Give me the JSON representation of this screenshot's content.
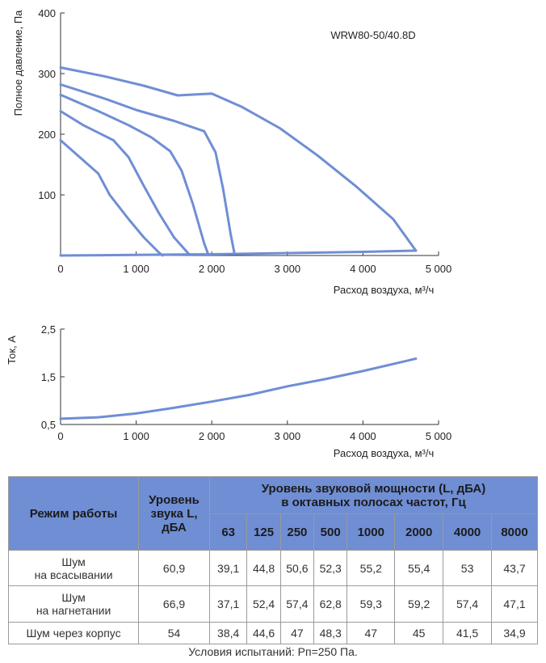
{
  "chart_data": [
    {
      "type": "line",
      "title": "WRW80-50/40.8D",
      "xlabel": "Расход воздуха, м³/ч",
      "ylabel": "Полное давление, Па",
      "xlim": [
        0,
        5000
      ],
      "ylim": [
        0,
        400
      ],
      "x_ticks": [
        0,
        1000,
        2000,
        3000,
        4000,
        5000
      ],
      "x_tick_labels": [
        "0",
        "1 000",
        "2 000",
        "3 000",
        "4 000",
        "5 000"
      ],
      "y_ticks": [
        100,
        200,
        300,
        400
      ],
      "y_tick_labels": [
        "100",
        "200",
        "300",
        "400"
      ],
      "grid": false,
      "series": [
        {
          "name": "curve-1",
          "points": [
            [
              0,
              190
            ],
            [
              200,
              168
            ],
            [
              500,
              135
            ],
            [
              650,
              100
            ],
            [
              900,
              60
            ],
            [
              1100,
              30
            ],
            [
              1300,
              5
            ],
            [
              1350,
              0
            ]
          ]
        },
        {
          "name": "curve-2",
          "points": [
            [
              0,
              238
            ],
            [
              300,
              215
            ],
            [
              700,
              190
            ],
            [
              900,
              162
            ],
            [
              1100,
              115
            ],
            [
              1300,
              70
            ],
            [
              1500,
              30
            ],
            [
              1700,
              2
            ]
          ]
        },
        {
          "name": "curve-3",
          "points": [
            [
              0,
              265
            ],
            [
              500,
              238
            ],
            [
              900,
              215
            ],
            [
              1200,
              195
            ],
            [
              1450,
              172
            ],
            [
              1600,
              140
            ],
            [
              1750,
              85
            ],
            [
              1900,
              20
            ],
            [
              1950,
              3
            ]
          ]
        },
        {
          "name": "curve-4",
          "points": [
            [
              0,
              282
            ],
            [
              600,
              258
            ],
            [
              1000,
              240
            ],
            [
              1500,
              222
            ],
            [
              1900,
              205
            ],
            [
              2050,
              170
            ],
            [
              2150,
              110
            ],
            [
              2250,
              35
            ],
            [
              2300,
              3
            ]
          ]
        },
        {
          "name": "curve-5",
          "points": [
            [
              0,
              310
            ],
            [
              600,
              295
            ],
            [
              1100,
              280
            ],
            [
              1550,
              264
            ],
            [
              2000,
              267
            ],
            [
              2400,
              245
            ],
            [
              2900,
              210
            ],
            [
              3400,
              165
            ],
            [
              3900,
              115
            ],
            [
              4400,
              60
            ],
            [
              4700,
              8
            ]
          ]
        },
        {
          "name": "floor",
          "points": [
            [
              0,
              0
            ],
            [
              1000,
              1
            ],
            [
              2000,
              2
            ],
            [
              3000,
              4
            ],
            [
              4000,
              6
            ],
            [
              4700,
              8
            ]
          ]
        }
      ]
    },
    {
      "type": "line",
      "title": "",
      "xlabel": "Расход воздуха, м³/ч",
      "ylabel": "Ток, А",
      "xlim": [
        0,
        5000
      ],
      "ylim": [
        0.5,
        2.5
      ],
      "x_ticks": [
        0,
        1000,
        2000,
        3000,
        4000,
        5000
      ],
      "x_tick_labels": [
        "0",
        "1 000",
        "2 000",
        "3 000",
        "4 000",
        "5 000"
      ],
      "y_ticks": [
        0.5,
        1.5,
        2.5
      ],
      "y_tick_labels": [
        "0,5",
        "1,5",
        "2,5"
      ],
      "grid": false,
      "series": [
        {
          "name": "current",
          "points": [
            [
              0,
              0.62
            ],
            [
              500,
              0.65
            ],
            [
              1000,
              0.73
            ],
            [
              1500,
              0.85
            ],
            [
              2000,
              0.98
            ],
            [
              2500,
              1.12
            ],
            [
              3000,
              1.3
            ],
            [
              3500,
              1.45
            ],
            [
              4000,
              1.62
            ],
            [
              4700,
              1.88
            ]
          ]
        }
      ]
    }
  ],
  "colors": {
    "curve": "#6f8ed4",
    "axis": "#333333",
    "header": "#6f8ed4"
  },
  "table": {
    "mode_header": "Режим работы",
    "level_header": [
      "Уровень",
      "звука L,",
      "дБА"
    ],
    "power_header": [
      "Уровень звуковой мощности (L, дБА)",
      "в октавных полосах частот, Гц"
    ],
    "frequencies": [
      "63",
      "125",
      "250",
      "500",
      "1000",
      "2000",
      "4000",
      "8000"
    ],
    "rows": [
      {
        "mode": [
          "Шум",
          "на всасывании"
        ],
        "level": "60,9",
        "values": [
          "39,1",
          "44,8",
          "50,6",
          "52,3",
          "55,2",
          "55,4",
          "53",
          "43,7"
        ]
      },
      {
        "mode": [
          "Шум",
          "на нагнетании"
        ],
        "level": "66,9",
        "values": [
          "37,1",
          "52,4",
          "57,4",
          "62,8",
          "59,3",
          "59,2",
          "57,4",
          "47,1"
        ]
      },
      {
        "mode": [
          "Шум через корпус"
        ],
        "level": "54",
        "values": [
          "38,4",
          "44,6",
          "47",
          "48,3",
          "47",
          "45",
          "41,5",
          "34,9"
        ]
      }
    ]
  },
  "caption": "Условия испытаний: Pп=250 Па."
}
